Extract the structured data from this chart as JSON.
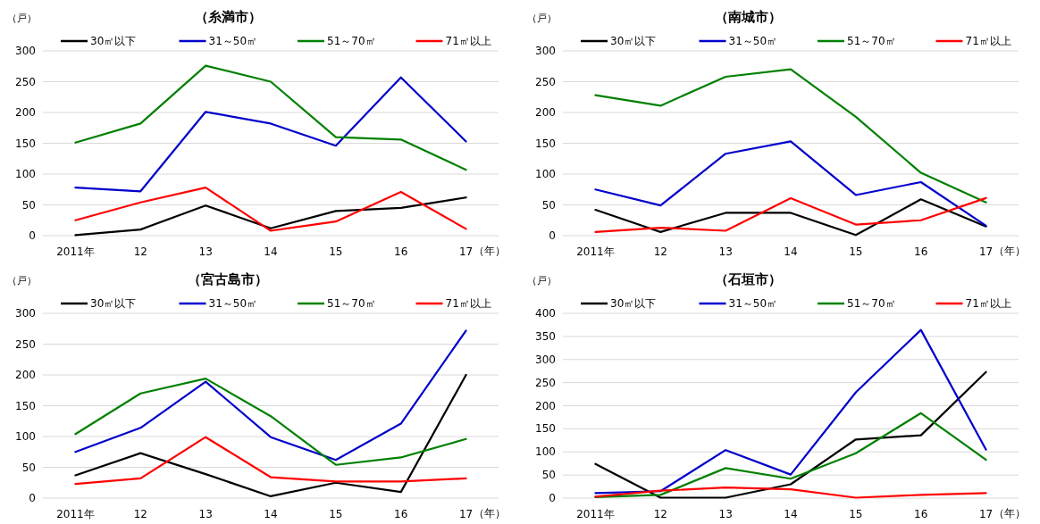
{
  "chart_data": [
    {
      "type": "line",
      "title": "（糸満市）",
      "ylabel": "（戸）",
      "xlabel": "（年）",
      "categories": [
        "2011年",
        "12",
        "13",
        "14",
        "15",
        "16",
        "17"
      ],
      "ylim": [
        0,
        300
      ],
      "yticks": [
        0,
        50,
        100,
        150,
        200,
        250,
        300
      ],
      "grid": "y",
      "legend": "top",
      "series": [
        {
          "name": "30㎡以下",
          "color": "#000000",
          "values": [
            1,
            10,
            49,
            12,
            40,
            45,
            62
          ]
        },
        {
          "name": "31～50㎡",
          "color": "#0000cc",
          "values": [
            78,
            72,
            201,
            182,
            146,
            257,
            153
          ]
        },
        {
          "name": "51～70㎡",
          "color": "#008000",
          "values": [
            151,
            182,
            276,
            250,
            160,
            156,
            107
          ]
        },
        {
          "name": "71㎡以上",
          "color": "#ff0000",
          "values": [
            25,
            54,
            78,
            8,
            23,
            71,
            11
          ]
        }
      ]
    },
    {
      "type": "line",
      "title": "（南城市）",
      "ylabel": "（戸）",
      "xlabel": "（年）",
      "categories": [
        "2011年",
        "12",
        "13",
        "14",
        "15",
        "16",
        "17"
      ],
      "ylim": [
        0,
        300
      ],
      "yticks": [
        0,
        50,
        100,
        150,
        200,
        250,
        300
      ],
      "grid": "y",
      "legend": "top",
      "series": [
        {
          "name": "30㎡以下",
          "color": "#000000",
          "values": [
            42,
            6,
            37,
            37,
            1,
            59,
            15
          ]
        },
        {
          "name": "31～50㎡",
          "color": "#0000cc",
          "values": [
            75,
            49,
            133,
            153,
            66,
            87,
            16
          ]
        },
        {
          "name": "51～70㎡",
          "color": "#008000",
          "values": [
            228,
            211,
            258,
            270,
            193,
            102,
            54
          ]
        },
        {
          "name": "71㎡以上",
          "color": "#ff0000",
          "values": [
            6,
            13,
            8,
            61,
            18,
            25,
            61
          ]
        }
      ]
    },
    {
      "type": "line",
      "title": "（宮古島市）",
      "ylabel": "（戸）",
      "xlabel": "（年）",
      "categories": [
        "2011年",
        "12",
        "13",
        "14",
        "15",
        "16",
        "17"
      ],
      "ylim": [
        0,
        300
      ],
      "yticks": [
        0,
        50,
        100,
        150,
        200,
        250,
        300
      ],
      "grid": "y",
      "legend": "top",
      "series": [
        {
          "name": "30㎡以下",
          "color": "#000000",
          "values": [
            37,
            73,
            39,
            3,
            25,
            10,
            200
          ]
        },
        {
          "name": "31～50㎡",
          "color": "#0000cc",
          "values": [
            75,
            114,
            189,
            99,
            62,
            121,
            272
          ]
        },
        {
          "name": "51～70㎡",
          "color": "#008000",
          "values": [
            104,
            170,
            194,
            133,
            54,
            66,
            96
          ]
        },
        {
          "name": "71㎡以上",
          "color": "#ff0000",
          "values": [
            23,
            32,
            99,
            34,
            27,
            27,
            32
          ]
        }
      ]
    },
    {
      "type": "line",
      "title": "（石垣市）",
      "ylabel": "（戸）",
      "xlabel": "（年）",
      "categories": [
        "2011年",
        "12",
        "13",
        "14",
        "15",
        "16",
        "17"
      ],
      "ylim": [
        0,
        400
      ],
      "yticks": [
        0,
        50,
        100,
        150,
        200,
        250,
        300,
        350,
        400
      ],
      "grid": "y",
      "legend": "top",
      "series": [
        {
          "name": "30㎡以下",
          "color": "#000000",
          "values": [
            74,
            1,
            1,
            30,
            127,
            136,
            273
          ]
        },
        {
          "name": "31～50㎡",
          "color": "#0000cc",
          "values": [
            11,
            15,
            104,
            51,
            229,
            364,
            105
          ]
        },
        {
          "name": "51～70㎡",
          "color": "#008000",
          "values": [
            2,
            7,
            65,
            42,
            97,
            184,
            83
          ]
        },
        {
          "name": "71㎡以上",
          "color": "#ff0000",
          "values": [
            3,
            16,
            23,
            19,
            1,
            7,
            11
          ]
        }
      ]
    }
  ]
}
